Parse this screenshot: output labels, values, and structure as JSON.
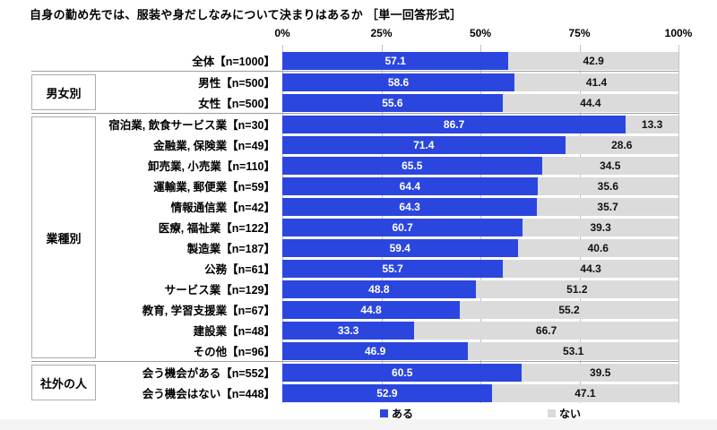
{
  "title": "自身の勤め先では、服装や身だしなみについて決まりはあるか ［単一回答形式］",
  "axis": {
    "ticks": [
      "0%",
      "25%",
      "50%",
      "75%",
      "100%"
    ]
  },
  "legend": [
    {
      "label": "ある",
      "color": "#2b46df"
    },
    {
      "label": "ない",
      "color": "#dbdbdb"
    }
  ],
  "colors": {
    "yes_bar": "#2b46df",
    "no_bar": "#dbdbdb",
    "yes_value_text": "#ffffff",
    "no_value_text": "#111111",
    "separator": "#9e9e9e",
    "gridline": "#c2c2c2"
  },
  "chart_data": {
    "type": "bar",
    "orientation": "horizontal",
    "stacked": true,
    "xlim": [
      0,
      100
    ],
    "x_ticks": [
      "0%",
      "25%",
      "50%",
      "75%",
      "100%"
    ],
    "legend_position": "bottom",
    "series_names": [
      "ある",
      "ない"
    ],
    "title": "自身の勤め先では、服装や身だしなみについて決まりはあるか ［単一回答形式］",
    "groups": [
      {
        "group": "",
        "rows": [
          {
            "label": "全体【n=1000】",
            "values": [
              57.1,
              42.9
            ]
          }
        ]
      },
      {
        "group": "男女別",
        "rows": [
          {
            "label": "男性【n=500】",
            "values": [
              58.6,
              41.4
            ]
          },
          {
            "label": "女性【n=500】",
            "values": [
              55.6,
              44.4
            ]
          }
        ]
      },
      {
        "group": "業種別",
        "rows": [
          {
            "label": "宿泊業, 飲食サービス業【n=30】",
            "values": [
              86.7,
              13.3
            ]
          },
          {
            "label": "金融業, 保険業【n=49】",
            "values": [
              71.4,
              28.6
            ]
          },
          {
            "label": "卸売業, 小売業【n=110】",
            "values": [
              65.5,
              34.5
            ]
          },
          {
            "label": "運輸業, 郵便業【n=59】",
            "values": [
              64.4,
              35.6
            ]
          },
          {
            "label": "情報通信業【n=42】",
            "values": [
              64.3,
              35.7
            ]
          },
          {
            "label": "医療, 福祉業【n=122】",
            "values": [
              60.7,
              39.3
            ]
          },
          {
            "label": "製造業【n=187】",
            "values": [
              59.4,
              40.6
            ]
          },
          {
            "label": "公務【n=61】",
            "values": [
              55.7,
              44.3
            ]
          },
          {
            "label": "サービス業【n=129】",
            "values": [
              48.8,
              51.2
            ]
          },
          {
            "label": "教育, 学習支援業【n=67】",
            "values": [
              44.8,
              55.2
            ]
          },
          {
            "label": "建設業【n=48】",
            "values": [
              33.3,
              66.7
            ]
          },
          {
            "label": "その他【n=96】",
            "values": [
              46.9,
              53.1
            ]
          }
        ]
      },
      {
        "group": "社外の人",
        "rows": [
          {
            "label": "会う機会がある【n=552】",
            "values": [
              60.5,
              39.5
            ]
          },
          {
            "label": "会う機会はない【n=448】",
            "values": [
              52.9,
              47.1
            ]
          }
        ]
      }
    ]
  }
}
